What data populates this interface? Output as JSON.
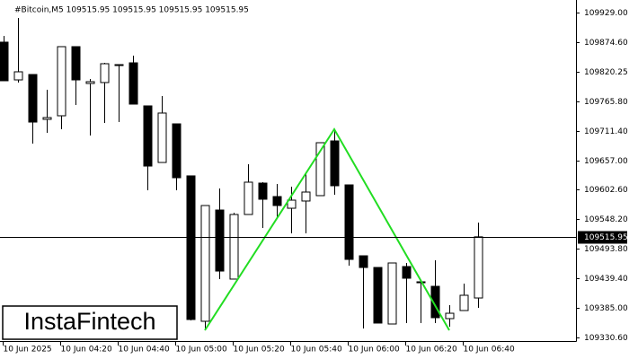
{
  "chart_data": {
    "type": "candlestick",
    "header": "#Bitcoin,M5  109515.95 109515.95 109515.95 109515.95",
    "logo": "InstaFintech",
    "categories": [
      "10 Jun 2025",
      null,
      null,
      null,
      "10 Jun 04:20",
      null,
      null,
      null,
      "10 Jun 04:40",
      null,
      null,
      null,
      "10 Jun 05:00",
      null,
      null,
      null,
      "10 Jun 05:20",
      null,
      null,
      null,
      "10 Jun 05:40",
      null,
      null,
      null,
      "10 Jun 06:00",
      null,
      null,
      null,
      "10 Jun 06:20",
      null,
      null,
      null,
      "10 Jun 06:40",
      null
    ],
    "open": [
      109874.5,
      109805.0,
      109814.9,
      109732.3,
      109738.9,
      109866.2,
      109798.4,
      109800.1,
      109833.1,
      109836.4,
      109757.1,
      109652.9,
      109724.0,
      109628.2,
      109360.4,
      109565.3,
      109438.1,
      109557.1,
      109614.9,
      109590.1,
      109568.6,
      109581.9,
      109591.8,
      109692.6,
      109611.6,
      109481.0,
      109459.5,
      109355.4,
      109461.2,
      109433.1,
      109424.8,
      109365.3,
      109380.2,
      109403.3
    ],
    "high": [
      109886.0,
      109919.1,
      109814.9,
      109786.8,
      109866.2,
      109866.2,
      109806.7,
      109836.4,
      109833.1,
      109849.7,
      109757.1,
      109775.3,
      109724.0,
      109628.2,
      109573.6,
      109605.0,
      109560.4,
      109649.6,
      109616.6,
      109613.3,
      109608.3,
      109633.1,
      109689.3,
      109710.8,
      109611.6,
      109481.0,
      109459.5,
      109467.8,
      109467.8,
      109434.8,
      109472.8,
      109390.1,
      109429.8,
      109542.2
    ],
    "low": [
      109803.4,
      109800.1,
      109687.7,
      109707.5,
      109714.1,
      109758.7,
      109702.5,
      109725.7,
      109727.3,
      109760.4,
      109601.7,
      109652.9,
      109601.7,
      109362.0,
      109343.8,
      109438.1,
      109438.1,
      109557.1,
      109532.3,
      109550.5,
      109522.4,
      109522.4,
      109591.8,
      109593.4,
      109462.9,
      109347.1,
      109357.1,
      109355.4,
      109357.1,
      109357.1,
      109357.1,
      109350.4,
      109380.2,
      109385.2
    ],
    "close": [
      109803.4,
      109819.9,
      109727.3,
      109735.6,
      109866.2,
      109805.0,
      109801.7,
      109834.8,
      109831.5,
      109760.4,
      109646.3,
      109743.9,
      109624.8,
      109363.7,
      109573.6,
      109452.9,
      109557.1,
      109616.6,
      109585.2,
      109573.6,
      109583.5,
      109598.4,
      109689.3,
      109610.0,
      109474.4,
      109459.5,
      109357.1,
      109467.8,
      109439.7,
      109431.4,
      109367.0,
      109375.2,
      109408.3,
      109515.95
    ],
    "up_color": "#ffffff",
    "down_color": "#000000",
    "last_price": 109515.95,
    "pattern": {
      "color": "#22dd22",
      "x": [
        14,
        23,
        31
      ],
      "values": [
        109343.8,
        109714.1,
        109343.8
      ]
    },
    "ylim": [
      109323.99,
      109952.14
    ],
    "yticks": [
      {
        "value": 109929.0,
        "label": "109929.00"
      },
      {
        "value": 109874.6,
        "label": "109874.60"
      },
      {
        "value": 109820.25,
        "label": "109820.25"
      },
      {
        "value": 109765.8,
        "label": "109765.80"
      },
      {
        "value": 109711.4,
        "label": "109711.40"
      },
      {
        "value": 109657.0,
        "label": "109657.00"
      },
      {
        "value": 109602.6,
        "label": "109602.60"
      },
      {
        "value": 109548.2,
        "label": "109548.20"
      },
      {
        "value": 109493.8,
        "label": "109493.80"
      },
      {
        "value": 109439.4,
        "label": "109439.40"
      },
      {
        "value": 109385.0,
        "label": "109385.00"
      },
      {
        "value": 109330.6,
        "label": "109330.60"
      }
    ]
  }
}
